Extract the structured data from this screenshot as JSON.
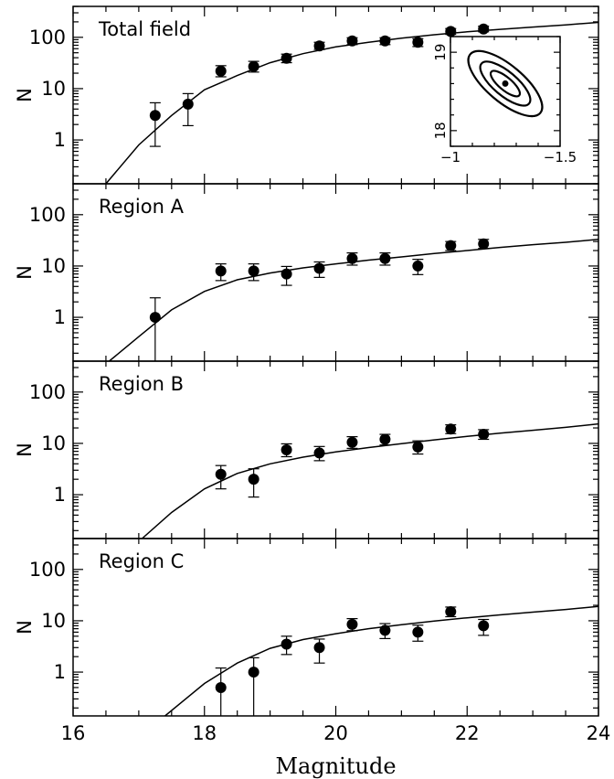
{
  "chart_data": {
    "type": "scatter",
    "xlabel": "Magnitude",
    "xlim": [
      16,
      24
    ],
    "x_ticks": [
      "16",
      "18",
      "20",
      "22",
      "24"
    ],
    "y_scale": "log",
    "ylim": [
      0.14,
      400
    ],
    "y_ticks": [
      "1",
      "10",
      "100"
    ],
    "panels": [
      {
        "label": "Total field",
        "ylabel": "N",
        "points": [
          {
            "x": 17.25,
            "y": 3.0,
            "lo": 0.75,
            "hi": 5.3
          },
          {
            "x": 17.75,
            "y": 5.0,
            "lo": 1.9,
            "hi": 8.0
          },
          {
            "x": 18.25,
            "y": 22,
            "lo": 17,
            "hi": 28
          },
          {
            "x": 18.75,
            "y": 27,
            "lo": 21,
            "hi": 34
          },
          {
            "x": 19.25,
            "y": 39,
            "lo": 32,
            "hi": 47
          },
          {
            "x": 19.75,
            "y": 68,
            "lo": 58,
            "hi": 80
          },
          {
            "x": 20.25,
            "y": 85,
            "lo": 72,
            "hi": 98
          },
          {
            "x": 20.75,
            "y": 85,
            "lo": 72,
            "hi": 98
          },
          {
            "x": 21.25,
            "y": 80,
            "lo": 66,
            "hi": 94
          },
          {
            "x": 21.75,
            "y": 130,
            "lo": 114,
            "hi": 148
          },
          {
            "x": 22.25,
            "y": 145,
            "lo": 128,
            "hi": 165
          }
        ],
        "fit": [
          [
            16.5,
            0.14
          ],
          [
            17.0,
            0.8
          ],
          [
            17.5,
            3.0
          ],
          [
            18.0,
            9.5
          ],
          [
            18.5,
            18
          ],
          [
            19.0,
            32
          ],
          [
            19.5,
            48
          ],
          [
            20.0,
            65
          ],
          [
            20.5,
            80
          ],
          [
            21.0,
            96
          ],
          [
            21.5,
            112
          ],
          [
            22.0,
            128
          ],
          [
            22.5,
            143
          ],
          [
            23.0,
            158
          ],
          [
            23.5,
            175
          ],
          [
            24.0,
            195
          ]
        ]
      },
      {
        "label": "Region A",
        "ylabel": "N",
        "points": [
          {
            "x": 17.25,
            "y": 1.0,
            "lo": 0.14,
            "hi": 2.4
          },
          {
            "x": 18.25,
            "y": 8.0,
            "lo": 5.2,
            "hi": 11
          },
          {
            "x": 18.75,
            "y": 8.0,
            "lo": 5.2,
            "hi": 11
          },
          {
            "x": 19.25,
            "y": 7.0,
            "lo": 4.2,
            "hi": 9.8
          },
          {
            "x": 19.75,
            "y": 9.0,
            "lo": 6.0,
            "hi": 12
          },
          {
            "x": 20.25,
            "y": 14,
            "lo": 10.4,
            "hi": 18
          },
          {
            "x": 20.75,
            "y": 14,
            "lo": 10.4,
            "hi": 18
          },
          {
            "x": 21.25,
            "y": 10,
            "lo": 6.8,
            "hi": 13.5
          },
          {
            "x": 21.75,
            "y": 25,
            "lo": 20,
            "hi": 30
          },
          {
            "x": 22.25,
            "y": 27,
            "lo": 22,
            "hi": 33
          }
        ],
        "fit": [
          [
            16.55,
            0.14
          ],
          [
            17.0,
            0.42
          ],
          [
            17.5,
            1.4
          ],
          [
            18.0,
            3.2
          ],
          [
            18.5,
            5.4
          ],
          [
            19.0,
            7.3
          ],
          [
            19.5,
            9.2
          ],
          [
            20.0,
            11
          ],
          [
            20.5,
            13
          ],
          [
            21.0,
            15
          ],
          [
            21.5,
            17.5
          ],
          [
            22.0,
            20
          ],
          [
            22.5,
            23
          ],
          [
            23.0,
            26
          ],
          [
            23.5,
            29
          ],
          [
            24.0,
            33
          ]
        ]
      },
      {
        "label": "Region B",
        "ylabel": "N",
        "points": [
          {
            "x": 18.25,
            "y": 2.5,
            "lo": 1.3,
            "hi": 3.7
          },
          {
            "x": 18.75,
            "y": 2.0,
            "lo": 0.9,
            "hi": 3.2
          },
          {
            "x": 19.25,
            "y": 7.5,
            "lo": 5.5,
            "hi": 9.8
          },
          {
            "x": 19.75,
            "y": 6.5,
            "lo": 4.6,
            "hi": 8.7
          },
          {
            "x": 20.25,
            "y": 10.5,
            "lo": 8.0,
            "hi": 13.5
          },
          {
            "x": 20.75,
            "y": 12,
            "lo": 9.3,
            "hi": 15
          },
          {
            "x": 21.25,
            "y": 8.5,
            "lo": 6.2,
            "hi": 11.2
          },
          {
            "x": 21.75,
            "y": 19,
            "lo": 15.5,
            "hi": 23
          },
          {
            "x": 22.25,
            "y": 15,
            "lo": 12,
            "hi": 18.5
          }
        ],
        "fit": [
          [
            17.05,
            0.14
          ],
          [
            17.5,
            0.45
          ],
          [
            18.0,
            1.3
          ],
          [
            18.5,
            2.6
          ],
          [
            19.0,
            4.0
          ],
          [
            19.5,
            5.4
          ],
          [
            20.0,
            6.8
          ],
          [
            20.5,
            8.3
          ],
          [
            21.0,
            9.9
          ],
          [
            21.5,
            11.7
          ],
          [
            22.0,
            13.7
          ],
          [
            22.5,
            15.8
          ],
          [
            23.0,
            18
          ],
          [
            23.5,
            20.5
          ],
          [
            24.0,
            24
          ]
        ]
      },
      {
        "label": "Region C",
        "ylabel": "N",
        "points": [
          {
            "x": 18.25,
            "y": 0.5,
            "lo": 0.14,
            "hi": 1.2
          },
          {
            "x": 18.75,
            "y": 1.0,
            "lo": 0.14,
            "hi": 1.9
          },
          {
            "x": 19.25,
            "y": 3.5,
            "lo": 2.2,
            "hi": 5.0
          },
          {
            "x": 19.75,
            "y": 3.0,
            "lo": 1.5,
            "hi": 4.4
          },
          {
            "x": 20.25,
            "y": 8.5,
            "lo": 6.4,
            "hi": 11
          },
          {
            "x": 20.75,
            "y": 6.5,
            "lo": 4.5,
            "hi": 8.8
          },
          {
            "x": 21.25,
            "y": 6.0,
            "lo": 4.0,
            "hi": 8.2
          },
          {
            "x": 21.75,
            "y": 15,
            "lo": 12,
            "hi": 18.5
          },
          {
            "x": 22.25,
            "y": 8.0,
            "lo": 5.2,
            "hi": 10.6
          }
        ],
        "fit": [
          [
            17.4,
            0.14
          ],
          [
            18.0,
            0.6
          ],
          [
            18.5,
            1.5
          ],
          [
            19.0,
            2.9
          ],
          [
            19.5,
            4.3
          ],
          [
            20.0,
            5.6
          ],
          [
            20.5,
            7.0
          ],
          [
            21.0,
            8.4
          ],
          [
            21.5,
            9.9
          ],
          [
            22.0,
            11.4
          ],
          [
            22.5,
            13.0
          ],
          [
            23.0,
            14.7
          ],
          [
            23.5,
            16.6
          ],
          [
            24.0,
            19
          ]
        ]
      }
    ],
    "inset": {
      "panel": "Total field",
      "x_ticks": [
        "−1",
        "−1.5"
      ],
      "xlim": [
        -1.0,
        -1.5
      ],
      "y_ticks": [
        "18",
        "19"
      ],
      "ylim": [
        17.8,
        19.2
      ],
      "best_fit": {
        "x": -1.25,
        "y": 18.6
      }
    }
  }
}
